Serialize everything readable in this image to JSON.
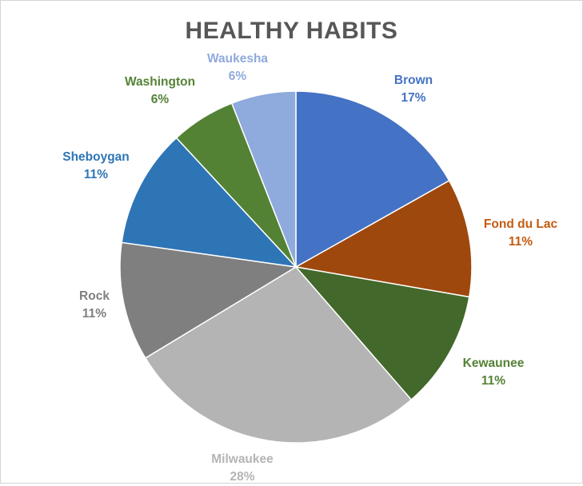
{
  "chart_data": {
    "type": "pie",
    "title": "HEALTHY HABITS",
    "slices": [
      {
        "label": "Brown",
        "value": 17,
        "display": "17%",
        "color": "#4472c4"
      },
      {
        "label": "Fond du Lac",
        "value": 11,
        "display": "11%",
        "color": "#9e480e"
      },
      {
        "label": "Kewaunee",
        "value": 11,
        "display": "11%",
        "color": "#43682b"
      },
      {
        "label": "Milwaukee",
        "value": 28,
        "display": "28%",
        "color": "#b4b4b4"
      },
      {
        "label": "Rock",
        "value": 11,
        "display": "11%",
        "color": "#7f7f7f"
      },
      {
        "label": "Sheboygan",
        "value": 11,
        "display": "11%",
        "color": "#2e75b6"
      },
      {
        "label": "Washington",
        "value": 6,
        "display": "6%",
        "color": "#548235"
      },
      {
        "label": "Waukesha",
        "value": 6,
        "display": "6%",
        "color": "#8faadc"
      }
    ],
    "label_colors": {
      "Brown": "#4472c4",
      "Fond du Lac": "#c55a11",
      "Kewaunee": "#548235",
      "Milwaukee": "#b4b4b4",
      "Rock": "#7f7f7f",
      "Sheboygan": "#2e75b6",
      "Washington": "#548235",
      "Waukesha": "#8faadc"
    },
    "start": "12 o'clock",
    "direction": "clockwise"
  }
}
